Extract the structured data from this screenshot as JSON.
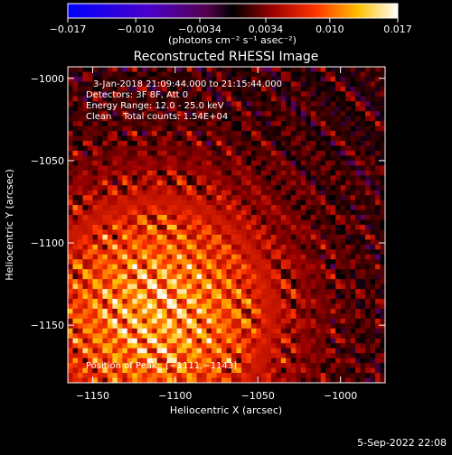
{
  "chart_data": {
    "type": "heatmap",
    "title": "Reconstructed RHESSI Image",
    "xlabel": "Heliocentric X (arcsec)",
    "ylabel": "Heliocentric Y (arcsec)",
    "xlim": [
      -1165,
      -973
    ],
    "ylim": [
      -1185,
      -993
    ],
    "x_ticks": [
      -1150,
      -1100,
      -1050,
      -1000
    ],
    "x_tick_labels": [
      "−1150",
      "−1100",
      "−1050",
      "−1000"
    ],
    "y_ticks": [
      -1000,
      -1050,
      -1100,
      -1150
    ],
    "y_tick_labels": [
      "−1000",
      "−1050",
      "−1100",
      "−1150"
    ],
    "colorbar": {
      "min": -0.017,
      "max": 0.017,
      "ticks": [
        -0.017,
        -0.01,
        -0.0034,
        0.0034,
        0.01,
        0.017
      ],
      "tick_labels": [
        "−0.017",
        "−0.010",
        "−0.0034",
        "0.0034",
        "0.010",
        "0.017"
      ],
      "units_label": "(photons cm⁻² s⁻¹ asec⁻²)"
    },
    "annotations": {
      "time_range": "3-Jan-2018 21:09:44.000 to 21:15:44.000",
      "detectors": "Detectors: 3F 8F, Att 0",
      "energy_range": "Energy Range: 12.0 - 25.0 keV",
      "method_counts": "Clean    Total counts: 1.54E+04",
      "peak_position": "Position of Peak:  [−1111,−1143]"
    },
    "peak": [
      -1111,
      -1143
    ],
    "grid": false
  },
  "footer": {
    "date_stamp": "5-Sep-2022 22:08"
  }
}
